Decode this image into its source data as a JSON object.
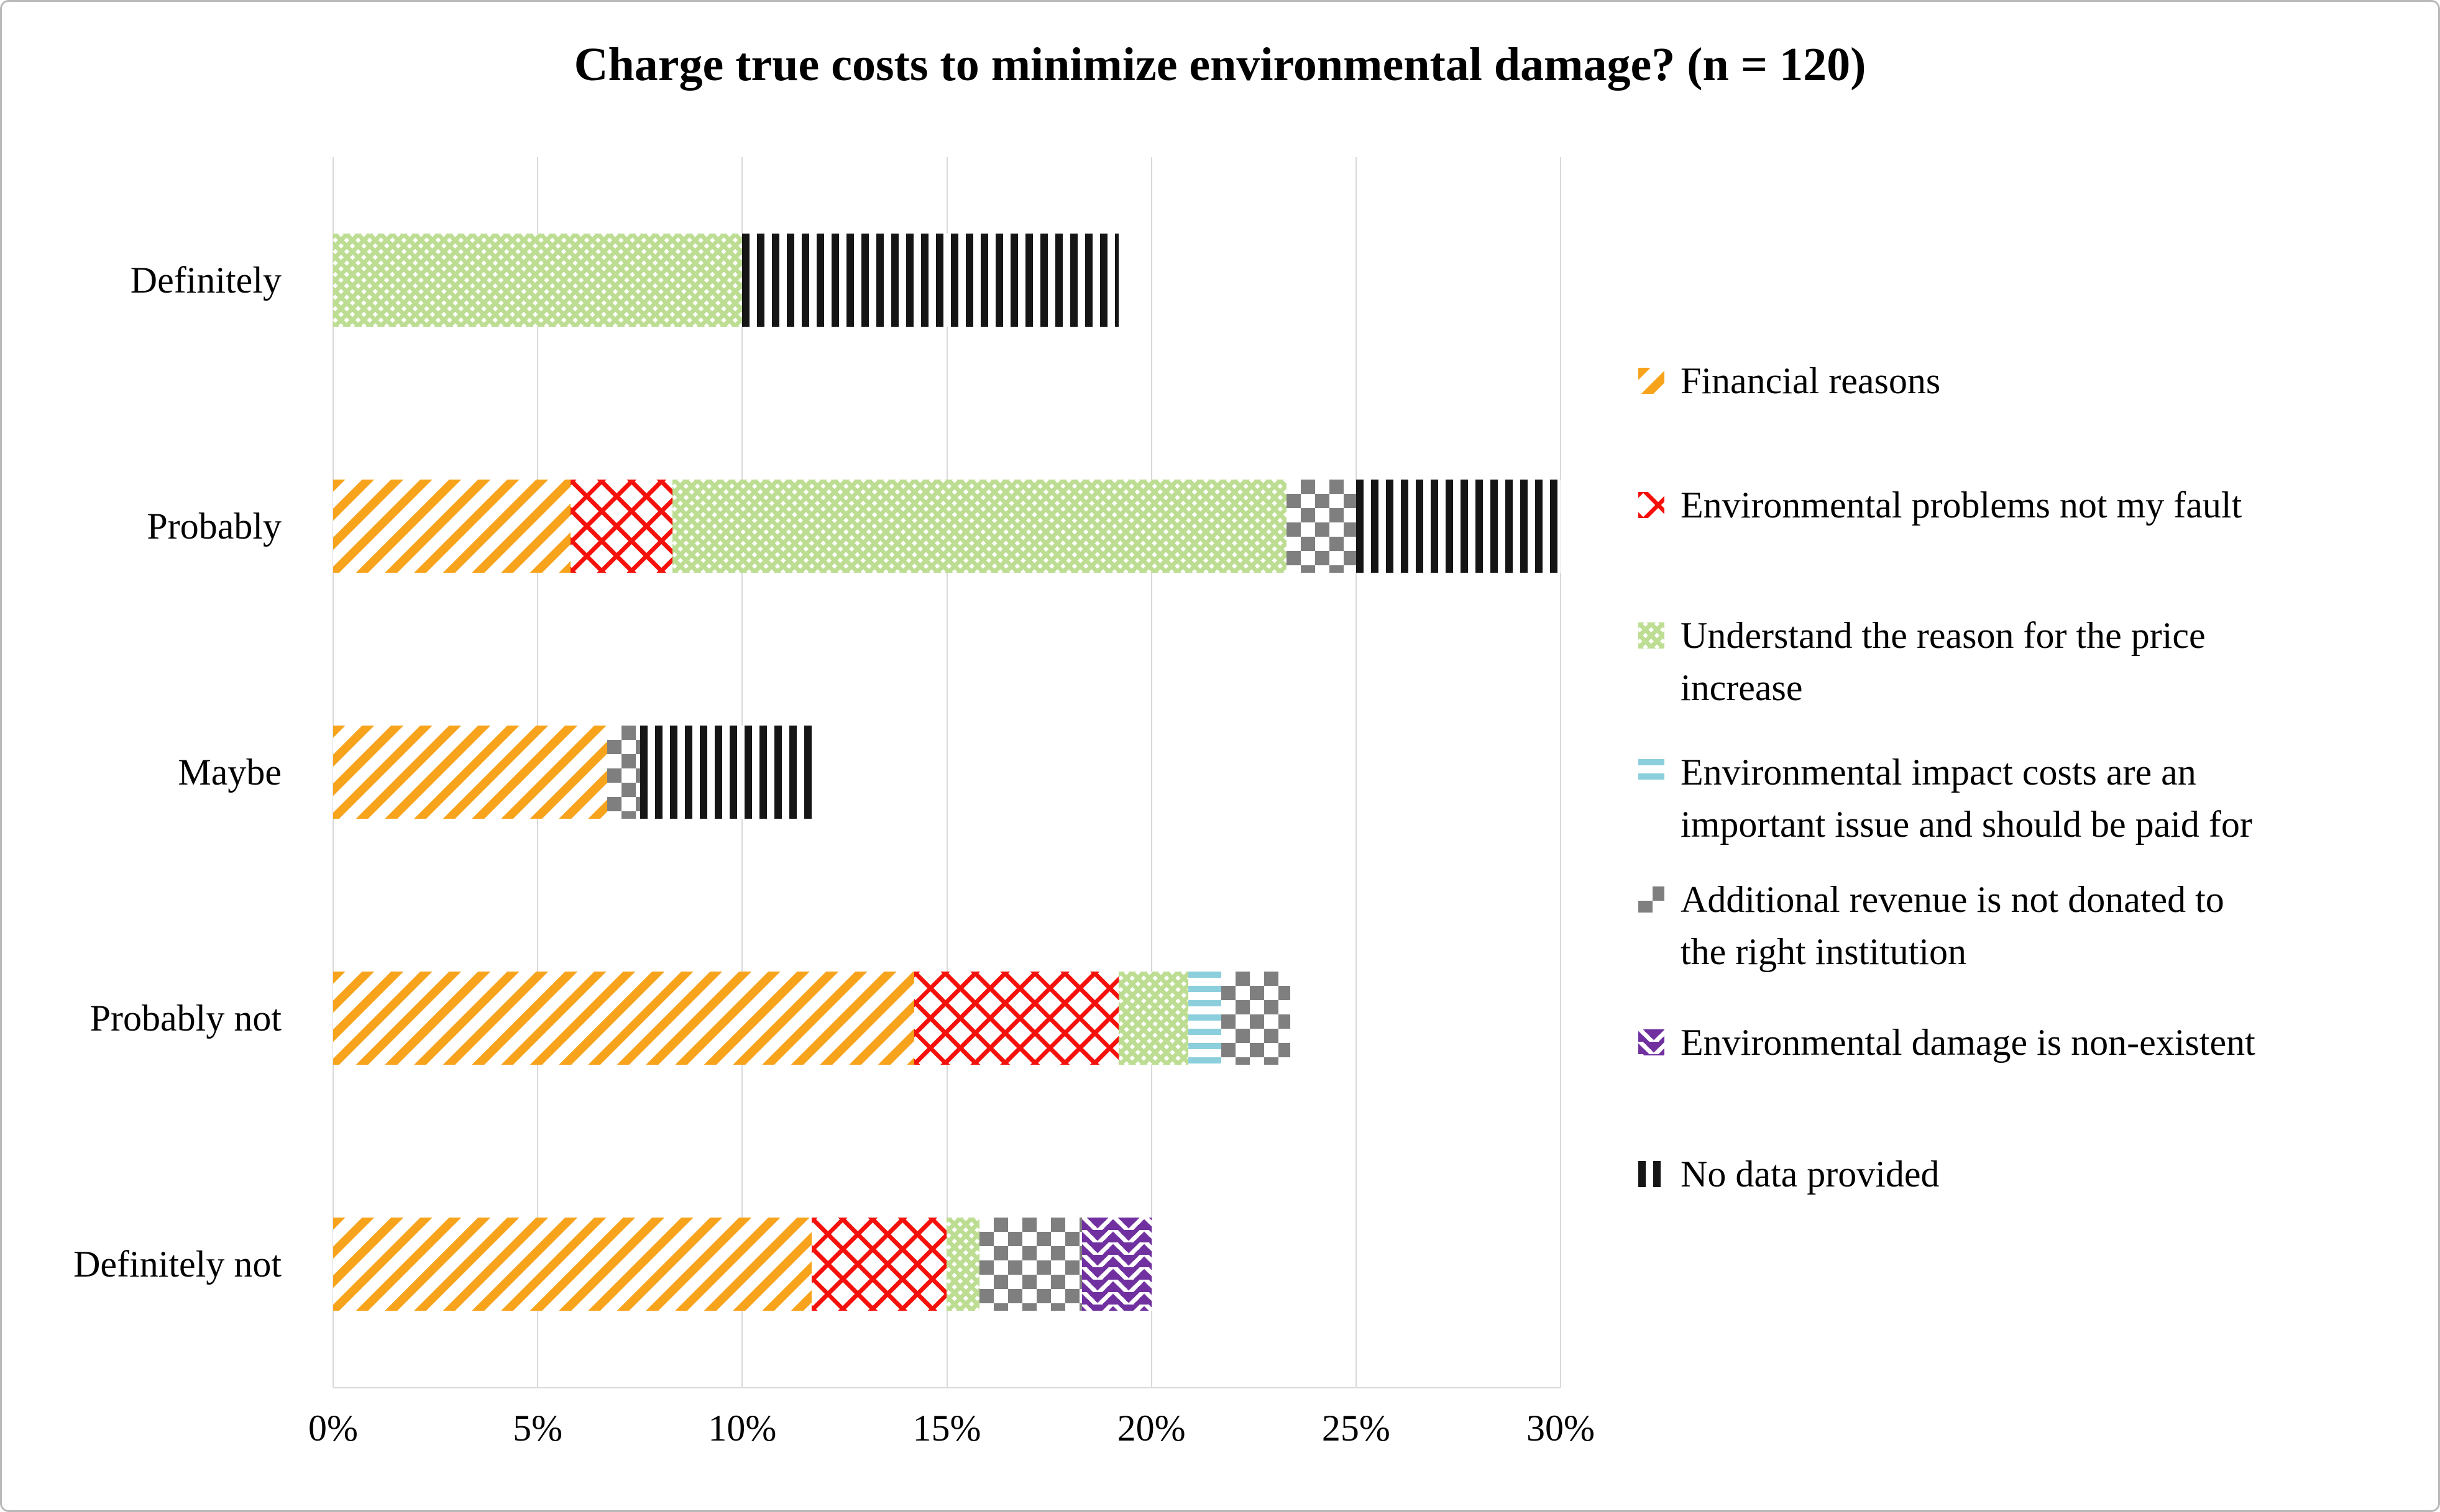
{
  "title": "Charge true costs to minimize environmental damage? (n = 120)",
  "chart_data": {
    "type": "bar",
    "orientation": "horizontal",
    "stacked": true,
    "title": "Charge true costs to minimize environmental damage? (n = 120)",
    "n": 120,
    "categories": [
      "Definitely",
      "Probably",
      "Maybe",
      "Probably not",
      "Definitely not"
    ],
    "series": [
      {
        "name": "Financial reasons",
        "legend_lines": [
          "Financial reasons"
        ],
        "pattern": "financial",
        "pattern_style": "diagonal-stripes",
        "color": "#F7A31C",
        "values": [
          0,
          5.8,
          6.7,
          14.2,
          11.7
        ]
      },
      {
        "name": "Environmental problems not my fault",
        "legend_lines": [
          "Environmental problems not my fault"
        ],
        "pattern": "fault",
        "pattern_style": "diagonal-crosshatch",
        "color": "#F5110B",
        "values": [
          0,
          2.5,
          0,
          5.0,
          3.3
        ]
      },
      {
        "name": "Understand the reason for the price increase",
        "legend_lines": [
          "Understand the reason for the price",
          "increase"
        ],
        "pattern": "understand",
        "pattern_style": "fine-lattice",
        "color": "#BCDD92",
        "values": [
          10.0,
          15.0,
          0,
          1.7,
          0.8
        ]
      },
      {
        "name": "Environmental impact costs are an important issue and should be paid for",
        "legend_lines": [
          "Environmental impact costs are an",
          "important issue and should be paid for"
        ],
        "pattern": "impact",
        "pattern_style": "horizontal-stripes",
        "color": "#8CCFDC",
        "values": [
          0,
          0,
          0,
          0.8,
          0
        ]
      },
      {
        "name": "Additional revenue is not donated to the right institution",
        "legend_lines": [
          "Additional revenue is not donated to",
          "the right institution"
        ],
        "pattern": "revenue",
        "pattern_style": "checkerboard",
        "color": "#7F7F7F",
        "values": [
          0,
          1.7,
          0.8,
          1.7,
          2.5
        ]
      },
      {
        "name": "Environmental damage is non-existent",
        "legend_lines": [
          "Environmental damage is non-existent"
        ],
        "pattern": "damage",
        "pattern_style": "wavy-lines",
        "color": "#7030A0",
        "values": [
          0,
          0,
          0,
          0,
          1.7
        ]
      },
      {
        "name": "No data provided",
        "legend_lines": [
          "No data provided"
        ],
        "pattern": "nodata",
        "pattern_style": "vertical-stripes",
        "color": "#151515",
        "values": [
          9.2,
          5.0,
          4.2,
          0,
          0
        ]
      }
    ],
    "category_totals_percent": [
      19.2,
      30.0,
      11.7,
      23.4,
      20.0
    ],
    "xlabel": "",
    "ylabel": "",
    "x_tick_labels": [
      "0%",
      "5%",
      "10%",
      "15%",
      "20%",
      "25%",
      "30%"
    ],
    "xlim": [
      0,
      30
    ],
    "grid": true,
    "legend_position": "right",
    "gridline_color": "#d9d9d9"
  }
}
